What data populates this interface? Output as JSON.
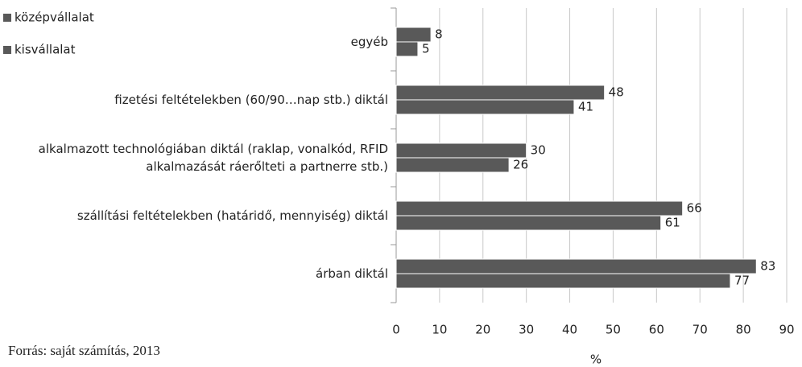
{
  "chart_data": {
    "type": "barh",
    "categories": [
      "egyéb",
      "fizetési feltételekben (60/90…nap stb.) diktál",
      "alkalmazott technológiában diktál (raklap, vonalkód, RFID alkalmazását ráerőlteti a partnerre stb.)",
      "szállítási feltételekben (határidő, mennyiség) diktál",
      "árban diktál"
    ],
    "series": [
      {
        "name": "középvállalat",
        "color": "#595959",
        "values": [
          8,
          48,
          30,
          66,
          83
        ]
      },
      {
        "name": "kisvállalat",
        "color": "#595959",
        "values": [
          5,
          41,
          26,
          61,
          77
        ]
      }
    ],
    "xlim": [
      0,
      90
    ],
    "xticks": [
      0,
      10,
      20,
      30,
      40,
      50,
      60,
      70,
      80,
      90
    ],
    "xlabel": "%",
    "grid": true,
    "legend": "top-left",
    "note": "Forrás: saját számítás, 2013"
  }
}
